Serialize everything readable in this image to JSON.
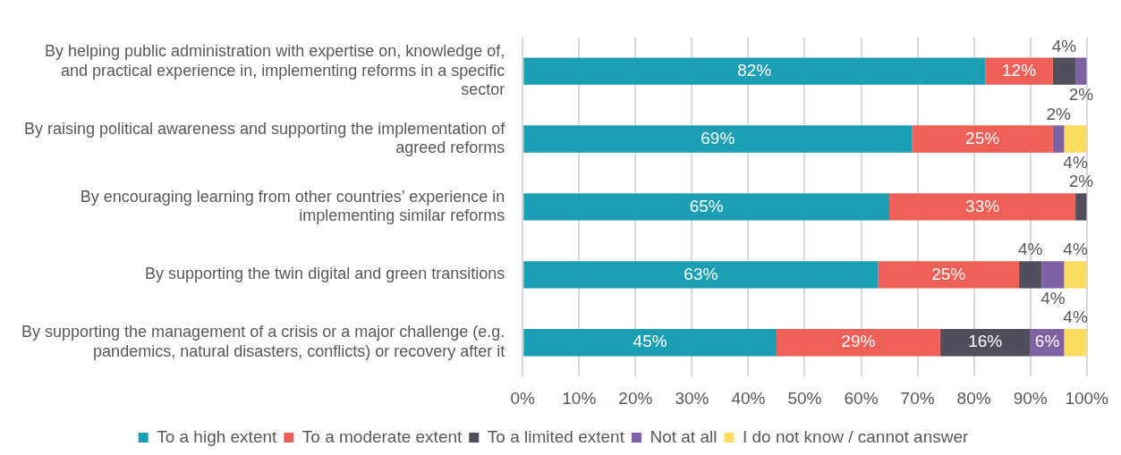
{
  "chart_data": {
    "type": "bar",
    "orientation": "horizontal",
    "stacked": true,
    "grid": "x",
    "legend": "bottom",
    "categories": [
      "By helping public administration with expertise on, knowledge of, and practical experience in, implementing reforms in a specific sector",
      "By raising political awareness and supporting the implementation of agreed reforms",
      "By encouraging learning from other countries’ experience in implementing similar reforms",
      "By supporting the twin digital and green transitions",
      "By supporting the management of a crisis or a major challenge (e.g. pandemics, natural disasters, conflicts) or recovery after it"
    ],
    "series": [
      {
        "name": "To a high extent",
        "color": "#1b9fb5",
        "values": [
          82,
          69,
          65,
          63,
          45
        ],
        "value_labels": [
          "82%",
          "69%",
          "65%",
          "63%",
          "45%"
        ]
      },
      {
        "name": "To a moderate extent",
        "color": "#ee5f58",
        "values": [
          12,
          25,
          33,
          25,
          29
        ],
        "value_labels": [
          "12%",
          "25%",
          "33%",
          "25%",
          "29%"
        ]
      },
      {
        "name": "To a limited extent",
        "color": "#514f5b",
        "values": [
          4,
          null,
          2,
          4,
          16
        ],
        "value_labels": [
          "4%",
          null,
          "2%",
          "4%",
          "16%"
        ]
      },
      {
        "name": "Not at all",
        "color": "#7f62a5",
        "values": [
          2,
          2,
          null,
          4,
          6
        ],
        "value_labels": [
          "2%",
          "2%",
          null,
          "4%",
          "6%"
        ]
      },
      {
        "name": "I do not know / cannot answer",
        "color": "#fbdc5f",
        "values": [
          null,
          4,
          null,
          4,
          4
        ],
        "value_labels": [
          null,
          "4%",
          null,
          "4%",
          "4%"
        ]
      }
    ],
    "xlim": [
      0,
      100
    ],
    "xticks": [
      {
        "value": 0,
        "label": "0%"
      },
      {
        "value": 10,
        "label": "10%"
      },
      {
        "value": 20,
        "label": "20%"
      },
      {
        "value": 30,
        "label": "30%"
      },
      {
        "value": 40,
        "label": "40%"
      },
      {
        "value": 50,
        "label": "50%"
      },
      {
        "value": 60,
        "label": "60%"
      },
      {
        "value": 70,
        "label": "70%"
      },
      {
        "value": 80,
        "label": "80%"
      },
      {
        "value": 90,
        "label": "90%"
      },
      {
        "value": 100,
        "label": "100%"
      }
    ]
  }
}
